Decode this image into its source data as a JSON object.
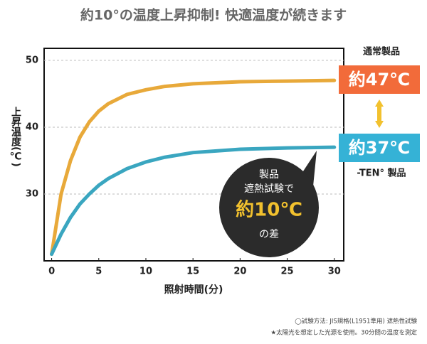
{
  "chart_data": {
    "type": "line",
    "title": "約10°の温度上昇抑制! 快適温度が続きます",
    "y_label": "上昇温度(℃)",
    "x_label": "照射時間(分)",
    "x": [
      0,
      1,
      2,
      3,
      4,
      5,
      6,
      8,
      10,
      12,
      15,
      20,
      25,
      30
    ],
    "series": [
      {
        "name": "通常製品",
        "color": "#e8a93a",
        "values": [
          21,
          30,
          35,
          38.5,
          40.8,
          42.4,
          43.5,
          44.9,
          45.6,
          46.1,
          46.5,
          46.8,
          46.9,
          47
        ]
      },
      {
        "name": "-TEN° 製品",
        "color": "#3aa6c0",
        "values": [
          21,
          24,
          26.5,
          28.5,
          30,
          31.3,
          32.3,
          33.8,
          34.8,
          35.5,
          36.2,
          36.7,
          36.9,
          37
        ]
      }
    ],
    "end_labels": [
      "約47℃",
      "約37℃"
    ],
    "end_label_colors": [
      "#f26b3a",
      "#35b2d6"
    ],
    "callout": [
      "製品",
      "遮熱試験で",
      "約10℃",
      "の差"
    ],
    "footnotes": [
      "◯試験方法: JIS規格(L1951準用) 遮熱性試験",
      "★太陽光を想定した光源を使用。30分間の温度を測定"
    ],
    "xlim": [
      -0.8,
      31
    ],
    "ylim": [
      20,
      51.8
    ],
    "xticks": [
      0,
      5,
      10,
      15,
      20,
      25,
      30
    ],
    "yticks": [
      30,
      40,
      50
    ],
    "grid": true
  }
}
